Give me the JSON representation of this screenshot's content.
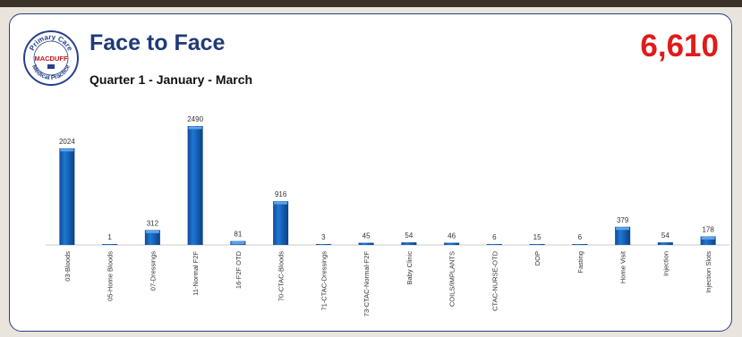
{
  "header": {
    "title": "Face to Face",
    "subtitle": "Quarter 1 - January - March",
    "total": "6,610"
  },
  "logo": {
    "text_top": "Primary Care",
    "text_middle": "MACDUFF",
    "text_bottom": "Medical Practice"
  },
  "colors": {
    "bar": "#1565c0",
    "bar_highlight": "#5ea3e8",
    "title": "#1f3a78",
    "total": "#e01b1b",
    "border": "#27408b"
  },
  "chart_data": {
    "type": "bar",
    "categories": [
      "03-Bloods",
      "05-Home Bloods",
      "07-Dressings",
      "11-Normal F2F",
      "16-F2F OTD",
      "70-CTAC-Bloods",
      "71-CTAC-Dressings",
      "73-CTAC-Normal-F2F",
      "Baby Clinic",
      "COILS/IMPLANTS",
      "CTAC-NURSE-OTD",
      "DOP",
      "Fasting",
      "Home Visit",
      "Injection",
      "Injection Slots"
    ],
    "values": [
      2024,
      1,
      312,
      2490,
      81,
      916,
      3,
      45,
      54,
      46,
      6,
      15,
      6,
      379,
      54,
      178
    ],
    "data_labels": [
      "2024",
      "1",
      "312",
      "2490",
      "81",
      "916",
      "3",
      "45",
      "54",
      "46",
      "6",
      "15",
      "6",
      "379",
      "54",
      "178"
    ],
    "ylim": [
      0,
      2490
    ],
    "grid": false,
    "legend": "none"
  }
}
